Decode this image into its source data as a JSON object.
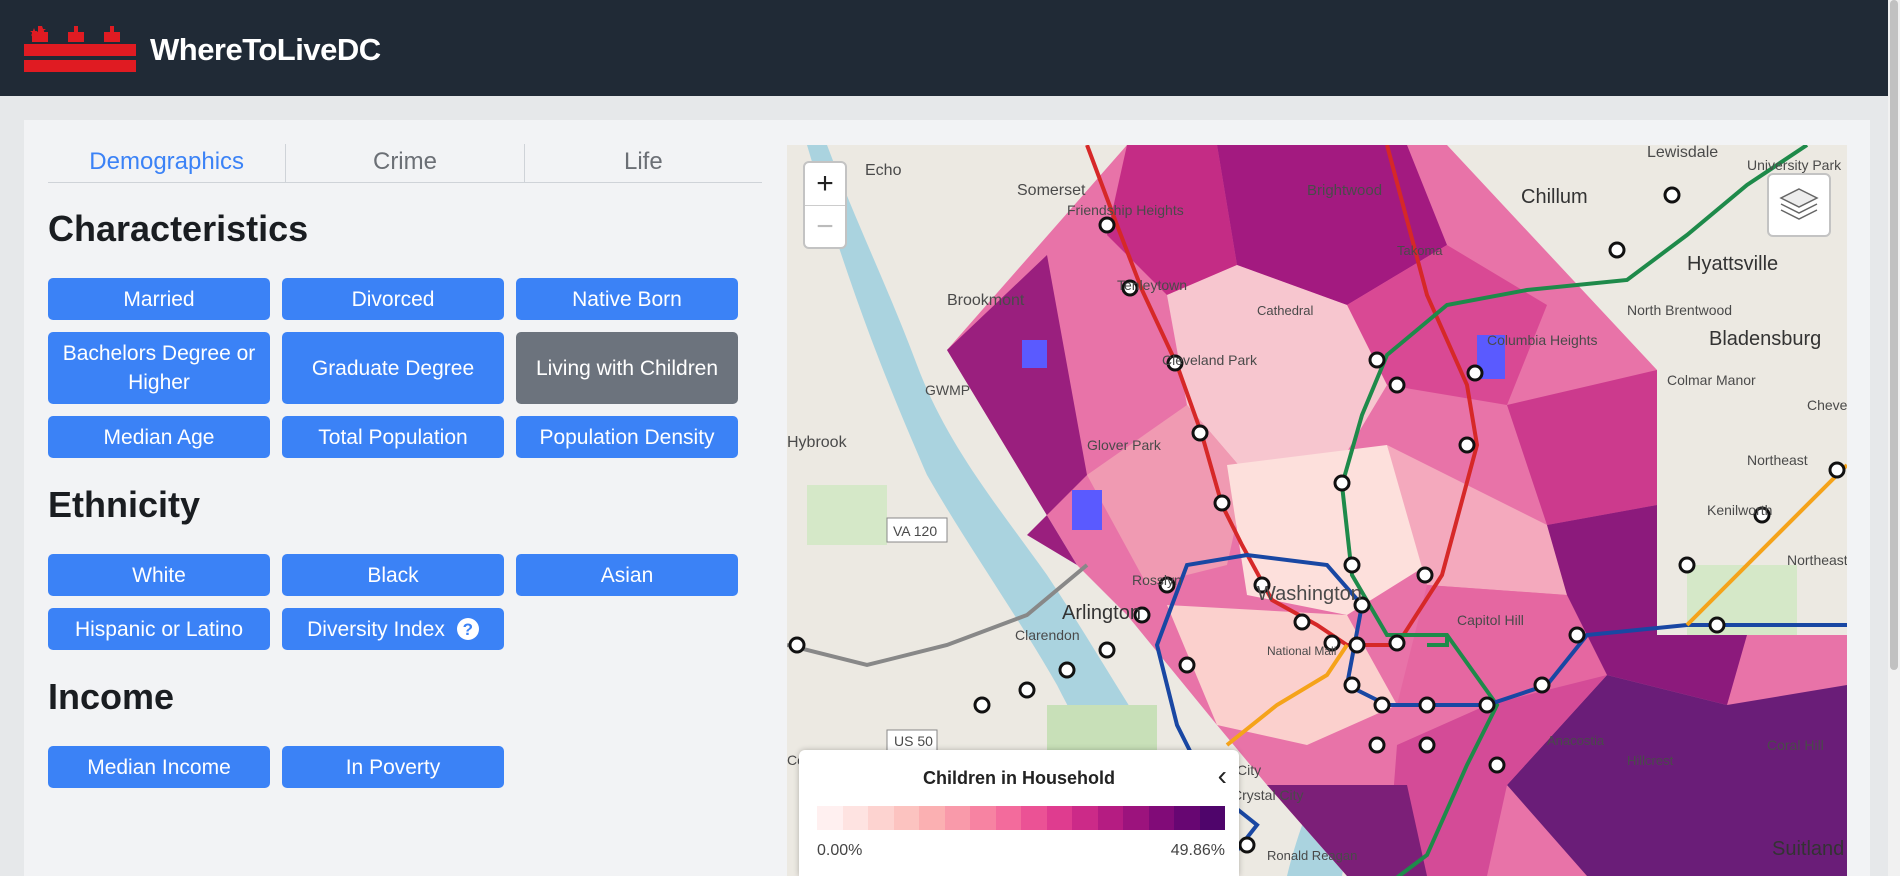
{
  "brand": "WhereToLiveDC",
  "tabs": [
    {
      "label": "Demographics",
      "active": true
    },
    {
      "label": "Crime",
      "active": false
    },
    {
      "label": "Life",
      "active": false
    }
  ],
  "sections": {
    "characteristics": {
      "title": "Characteristics",
      "buttons": [
        "Married",
        "Divorced",
        "Native Born",
        "Bachelors Degree or Higher",
        "Graduate Degree",
        "Living with Children",
        "Median Age",
        "Total Population",
        "Population Density"
      ],
      "active": "Living with Children"
    },
    "ethnicity": {
      "title": "Ethnicity",
      "buttons": [
        "White",
        "Black",
        "Asian",
        "Hispanic or Latino",
        "Diversity Index"
      ]
    },
    "income": {
      "title": "Income",
      "buttons": [
        "Median Income",
        "In Poverty"
      ]
    }
  },
  "help_icon": "?",
  "map": {
    "zoom_in": "+",
    "zoom_out": "−",
    "labels": [
      "Echo",
      "Somerset",
      "Friendship Heights",
      "Tenleytown",
      "Brookmont",
      "Cleveland Park",
      "Glover Park",
      "GWMP",
      "Hybrook",
      "Brightwood",
      "Chillum",
      "Lewisdale",
      "University Park",
      "Hyattsville",
      "North Brentwood",
      "Bladensburg",
      "Colmar Manor",
      "Cheverly",
      "Northeast",
      "Kenilworth",
      "Northeast",
      "Columbia Heights",
      "Washington",
      "Rosslyn",
      "VA 120",
      "Arlington",
      "Clarendon",
      "National Mall",
      "Capitol Hill",
      "US 50",
      "Corners",
      "City",
      "Crystal City",
      "Ronald Reagan",
      "Coral Hill",
      "Suitland",
      "Takoma",
      "Cathedral",
      "Anacostia",
      "Hillcrest"
    ],
    "legend": {
      "title": "Children in Household",
      "min": "0.00%",
      "max": "49.86%",
      "ramp": [
        "#fff0f0",
        "#fee3e1",
        "#fdd3d0",
        "#fcc3c0",
        "#fbb0b2",
        "#f99aaa",
        "#f783a2",
        "#f36b9c",
        "#eb5295",
        "#df3c8f",
        "#cc2a88",
        "#b51c82",
        "#9c137d",
        "#810b78",
        "#670672",
        "#4f056b"
      ]
    }
  },
  "colors": {
    "header_bg": "#202a36",
    "button": "#3b82f6",
    "button_active": "#6c737d",
    "accent": "#3b82f6",
    "logo_red": "#e01b22"
  }
}
